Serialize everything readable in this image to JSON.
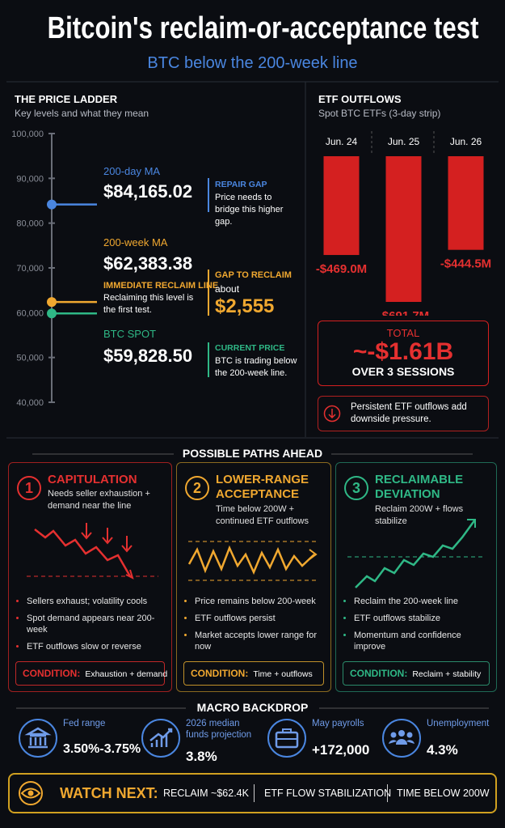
{
  "header": {
    "title": "Bitcoin's reclaim-or-acceptance test",
    "subtitle": "BTC below the 200-week line"
  },
  "chart_data": [
    {
      "type": "ladder",
      "title": "THE PRICE LADDER",
      "subtitle": "Key levels and what they mean",
      "ylim": [
        40000,
        100000
      ],
      "yticks": [
        {
          "value": 40000,
          "label": "40,000"
        },
        {
          "value": 50000,
          "label": "50,000"
        },
        {
          "value": 60000,
          "label": "60,000"
        },
        {
          "value": 70000,
          "label": "70,000"
        },
        {
          "value": 80000,
          "label": "80,000"
        },
        {
          "value": 90000,
          "label": "90,000"
        },
        {
          "value": 100000,
          "label": "100,000"
        }
      ],
      "levels": [
        {
          "name": "200-day MA",
          "value": 84165.02,
          "value_label": "$84,165.02",
          "color": "#4a86e0"
        },
        {
          "name": "200-week MA",
          "value": 62383.38,
          "value_label": "$62,383.38",
          "color": "#f0a830",
          "tag": "IMMEDIATE RECLAIM LINE",
          "tag_note": "Reclaiming this level is the first test."
        },
        {
          "name": "BTC SPOT",
          "value": 59828.5,
          "value_label": "$59,828.50",
          "color": "#2fb886"
        }
      ],
      "callouts": [
        {
          "title": "REPAIR GAP",
          "text": "Price needs to bridge this higher gap."
        },
        {
          "title": "GAP TO RECLAIM",
          "text": "about",
          "figure": "$2,555"
        },
        {
          "title": "CURRENT PRICE",
          "text": "BTC is trading below the 200-week line."
        }
      ]
    },
    {
      "type": "bar",
      "title": "ETF OUTFLOWS",
      "subtitle": "Spot BTC ETFs (3-day strip)",
      "categories": [
        "Jun. 24",
        "Jun. 25",
        "Jun. 26"
      ],
      "values": [
        -469.0,
        -691.7,
        -444.5
      ],
      "value_labels": [
        "-$469.0M",
        "-$691.7M",
        "-$444.5M"
      ],
      "color": "#d42020",
      "total": {
        "label": "TOTAL",
        "value": "~-$1.61B",
        "caption": "OVER 3 SESSIONS"
      },
      "note": "Persistent ETF outflows add downside pressure."
    }
  ],
  "paths": {
    "title": "POSSIBLE PATHS AHEAD",
    "cards": [
      {
        "number": "1",
        "title": "CAPITULATION",
        "subtitle": "Needs seller exhaustion + demand near the line",
        "bullets": [
          "Sellers exhaust; volatility cools",
          "Spot demand appears near 200-week",
          "ETF outflows slow or reverse"
        ],
        "condition_label": "CONDITION:",
        "condition": "Exhaustion + demand"
      },
      {
        "number": "2",
        "title": "LOWER-RANGE ACCEPTANCE",
        "subtitle": "Time below 200W + continued ETF outflows",
        "bullets": [
          "Price remains below 200-week",
          "ETF outflows persist",
          "Market accepts lower range for now"
        ],
        "condition_label": "CONDITION:",
        "condition": "Time + outflows"
      },
      {
        "number": "3",
        "title": "RECLAIMABLE DEVIATION",
        "subtitle": "Reclaim 200W + flows stabilize",
        "bullets": [
          "Reclaim the 200-week line",
          "ETF outflows stabilize",
          "Momentum and confidence improve"
        ],
        "condition_label": "CONDITION:",
        "condition": "Reclaim + stability"
      }
    ]
  },
  "macro": {
    "title": "MACRO BACKDROP",
    "items": [
      {
        "label": "Fed range",
        "value": "3.50%-3.75%"
      },
      {
        "label": "2026 median funds projection",
        "value": "3.8%"
      },
      {
        "label": "May payrolls",
        "value": "+172,000"
      },
      {
        "label": "Unemployment",
        "value": "4.3%"
      }
    ]
  },
  "watch": {
    "label": "WATCH NEXT:",
    "items": [
      "RECLAIM ~$62.4K",
      "ETF FLOW STABILIZATION",
      "TIME BELOW 200W"
    ]
  }
}
